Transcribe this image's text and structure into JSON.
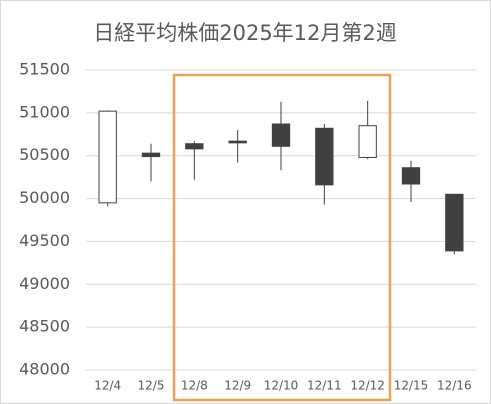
{
  "chart_data": {
    "type": "candlestick",
    "title": "日経平均株価2025年12月第2週",
    "categories": [
      "12/4",
      "12/5",
      "12/8",
      "12/9",
      "12/10",
      "12/11",
      "12/12",
      "12/15",
      "12/16"
    ],
    "open": [
      49950,
      50530,
      50640,
      50670,
      50870,
      50820,
      50480,
      50360,
      50050
    ],
    "high": [
      51030,
      50640,
      50670,
      50800,
      51130,
      50870,
      51140,
      50440,
      50050
    ],
    "low": [
      49910,
      50200,
      50220,
      50420,
      50330,
      49930,
      50460,
      49960,
      49350
    ],
    "close": [
      51020,
      50490,
      50580,
      50650,
      50610,
      50160,
      50850,
      50170,
      49390
    ],
    "up_color": "#ffffff",
    "down_color": "#404040",
    "ylim": [
      48000,
      51500
    ],
    "yticks": [
      48000,
      48500,
      49000,
      49500,
      50000,
      50500,
      51000,
      51500
    ],
    "grid": true
  }
}
